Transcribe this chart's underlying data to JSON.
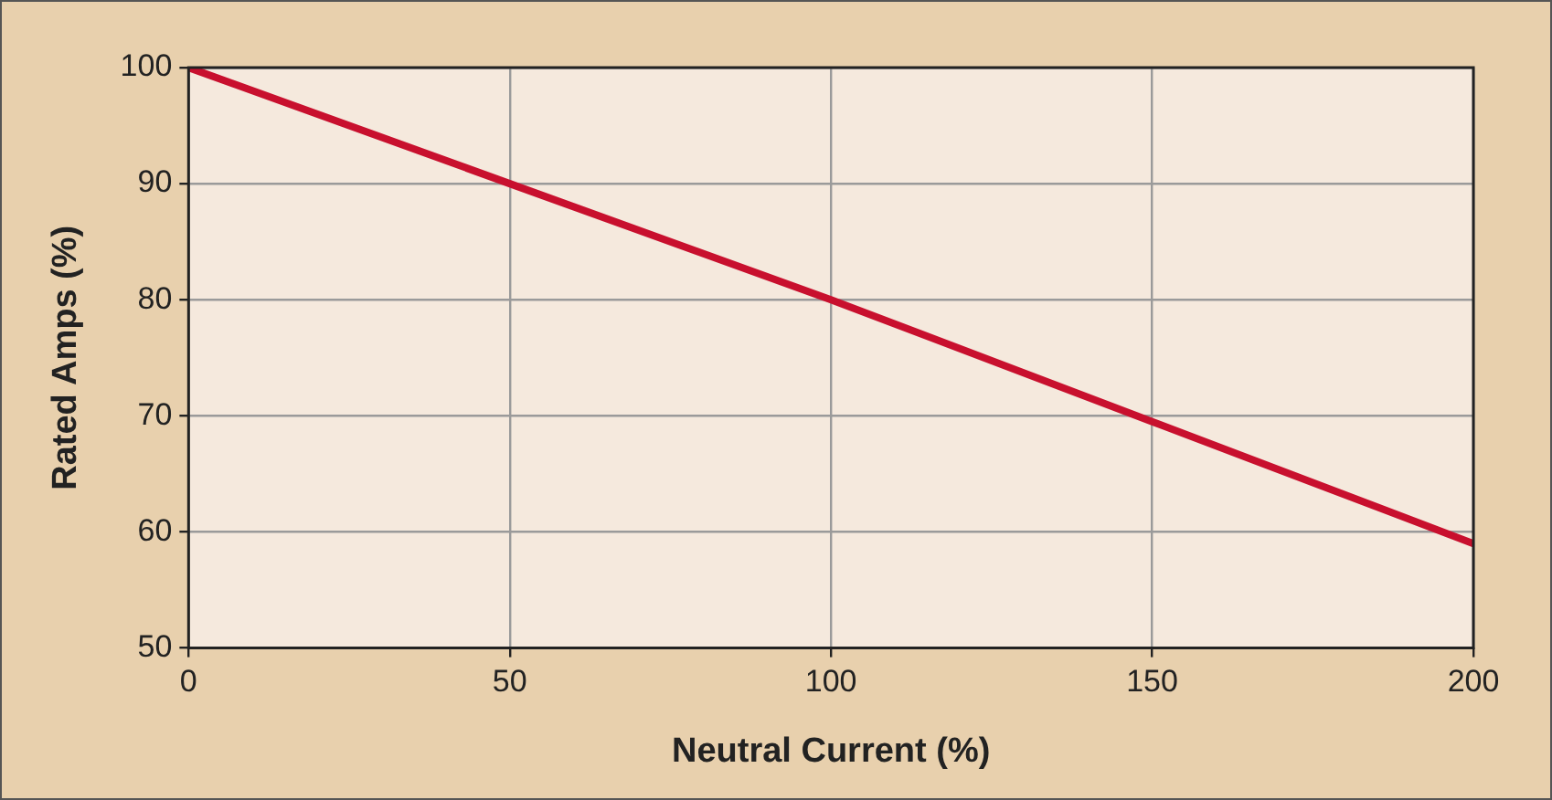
{
  "chart_data": {
    "type": "line",
    "xlabel": "Neutral Current (%)",
    "ylabel": "Rated Amps (%)",
    "x": [
      0,
      50,
      100,
      150,
      200
    ],
    "series": [
      {
        "color": "#c8102e",
        "values": [
          100,
          90,
          80,
          69.5,
          59
        ]
      }
    ],
    "xlim": [
      0,
      200
    ],
    "xticks": [
      0,
      50,
      100,
      150,
      200
    ],
    "ylim": [
      50,
      100
    ],
    "yticks": [
      50,
      60,
      70,
      80,
      90,
      100
    ],
    "grid": true,
    "legend": false,
    "marker": "none",
    "line_style": "solid"
  }
}
